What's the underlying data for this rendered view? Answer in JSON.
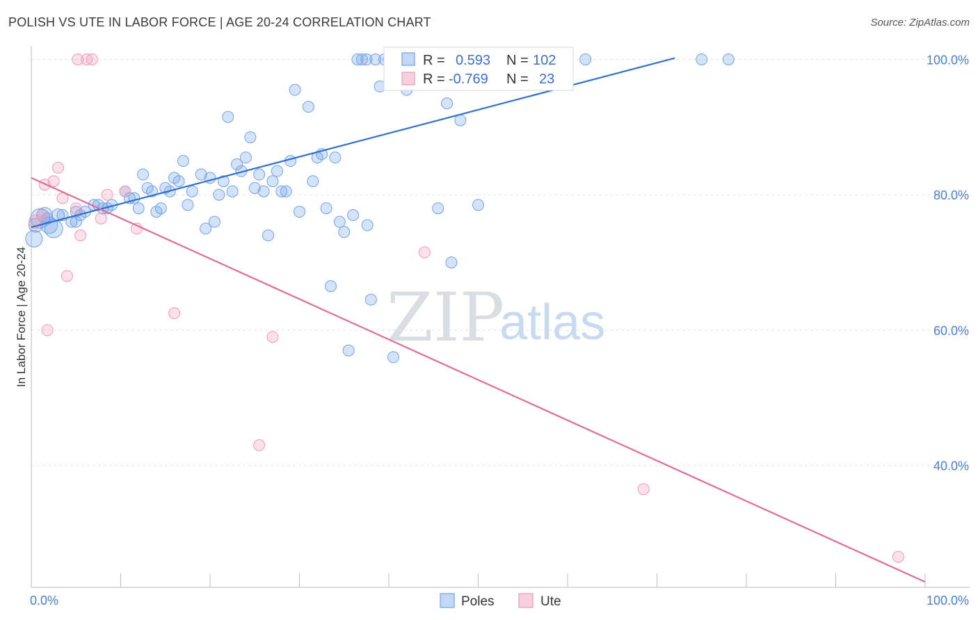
{
  "title": "POLISH VS UTE IN LABOR FORCE | AGE 20-24 CORRELATION CHART",
  "source": "Source: ZipAtlas.com",
  "watermark": {
    "zip": "ZIP",
    "atlas": "atlas"
  },
  "legend": {
    "rows": [
      {
        "r_label": "R = ",
        "r_value": "0.593",
        "n_label": "N = ",
        "n_value": "102",
        "color": "#6fa3e8"
      },
      {
        "r_label": "R = ",
        "r_value": "-0.769",
        "n_label": "N = ",
        "n_value": "23",
        "color": "#f19ab7"
      }
    ]
  },
  "chart_data": {
    "type": "scatter",
    "title": "POLISH VS UTE IN LABOR FORCE | AGE 20-24 CORRELATION CHART",
    "xlabel": "",
    "ylabel": "In Labor Force | Age 20-24",
    "xlim": [
      0,
      100
    ],
    "ylim": [
      22,
      102
    ],
    "x_tick_labels": [
      "0.0%",
      "100.0%"
    ],
    "y_ticks": [
      40,
      60,
      80,
      100
    ],
    "y_tick_labels": [
      "40.0%",
      "60.0%",
      "80.0%",
      "100.0%"
    ],
    "grid": true,
    "legend_placement": "bottom-center",
    "series": [
      {
        "name": "Poles",
        "color": "#6fa3e8",
        "trend": {
          "x": [
            0,
            72
          ],
          "y": [
            75.2,
            100.2
          ]
        },
        "points": [
          [
            0.3,
            73.5,
            12
          ],
          [
            0.5,
            75.5,
            10
          ],
          [
            1,
            76.5,
            14
          ],
          [
            1.5,
            77,
            11
          ],
          [
            2,
            75.5,
            12
          ],
          [
            2.5,
            75,
            13
          ],
          [
            3,
            77,
            9
          ],
          [
            3.5,
            77,
            8
          ],
          [
            4.5,
            76,
            8
          ],
          [
            5,
            77.5,
            8
          ],
          [
            5.5,
            77,
            8
          ],
          [
            6,
            77.5,
            8
          ],
          [
            7,
            78.5,
            8
          ],
          [
            7.5,
            78.5,
            8
          ],
          [
            8,
            78,
            8
          ],
          [
            8.5,
            78,
            8
          ],
          [
            9,
            78.5,
            8
          ],
          [
            10.5,
            80.5,
            8
          ],
          [
            11,
            79.5,
            8
          ],
          [
            11.5,
            79.5,
            8
          ],
          [
            12,
            78,
            8
          ],
          [
            12.5,
            83,
            8
          ],
          [
            13,
            81,
            8
          ],
          [
            13.5,
            80.5,
            8
          ],
          [
            14,
            77.5,
            8
          ],
          [
            14.5,
            78,
            8
          ],
          [
            15,
            81,
            8
          ],
          [
            15.5,
            80.5,
            8
          ],
          [
            16,
            82.5,
            8
          ],
          [
            16.5,
            82,
            8
          ],
          [
            17,
            85,
            8
          ],
          [
            17.5,
            78.5,
            8
          ],
          [
            18,
            80.5,
            8
          ],
          [
            19,
            83,
            8
          ],
          [
            19.5,
            75,
            8
          ],
          [
            20,
            82.5,
            8
          ],
          [
            20.5,
            76,
            8
          ],
          [
            21,
            80,
            8
          ],
          [
            21.5,
            82,
            8
          ],
          [
            22,
            91.5,
            8
          ],
          [
            22.5,
            80.5,
            8
          ],
          [
            23,
            84.5,
            8
          ],
          [
            23.5,
            83.5,
            8
          ],
          [
            24,
            85.5,
            8
          ],
          [
            24.5,
            88.5,
            8
          ],
          [
            25,
            81,
            8
          ],
          [
            25.5,
            83,
            8
          ],
          [
            26,
            80.5,
            8
          ],
          [
            26.5,
            74,
            8
          ],
          [
            27,
            82,
            8
          ],
          [
            27.5,
            83.5,
            8
          ],
          [
            28,
            80.5,
            8
          ],
          [
            28.5,
            80.5,
            8
          ],
          [
            29,
            85,
            8
          ],
          [
            29.5,
            95.5,
            8
          ],
          [
            30,
            77.5,
            8
          ],
          [
            31,
            93,
            8
          ],
          [
            31.5,
            82,
            8
          ],
          [
            32,
            85.5,
            8
          ],
          [
            32.5,
            86,
            8
          ],
          [
            33,
            78,
            8
          ],
          [
            33.5,
            66.5,
            8
          ],
          [
            34,
            85.5,
            8
          ],
          [
            34.5,
            76,
            8
          ],
          [
            35,
            74.5,
            8
          ],
          [
            35.5,
            57,
            8
          ],
          [
            36,
            77,
            8
          ],
          [
            36.5,
            100,
            8
          ],
          [
            37,
            100,
            8
          ],
          [
            37.5,
            100,
            8
          ],
          [
            37.6,
            75.5,
            8
          ],
          [
            38,
            64.5,
            8
          ],
          [
            38.5,
            100,
            8
          ],
          [
            39,
            96,
            8
          ],
          [
            39.5,
            100,
            8
          ],
          [
            40,
            100,
            8
          ],
          [
            40.5,
            56,
            8
          ],
          [
            41,
            100,
            8
          ],
          [
            41.5,
            100,
            8
          ],
          [
            42,
            95.5,
            8
          ],
          [
            43,
            100,
            8
          ],
          [
            44,
            100,
            8
          ],
          [
            45,
            100,
            8
          ],
          [
            45.5,
            78,
            8
          ],
          [
            46,
            100,
            8
          ],
          [
            46.5,
            93.5,
            8
          ],
          [
            47,
            70,
            8
          ],
          [
            47.5,
            100,
            8
          ],
          [
            48,
            91,
            8
          ],
          [
            49,
            100,
            8
          ],
          [
            50,
            78.5,
            8
          ],
          [
            51,
            100,
            8
          ],
          [
            52,
            100,
            8
          ],
          [
            53,
            100,
            8
          ],
          [
            55,
            100,
            8
          ],
          [
            57,
            100,
            8
          ],
          [
            60,
            100,
            8
          ],
          [
            62,
            100,
            8
          ],
          [
            75,
            100,
            8
          ],
          [
            78,
            100,
            8
          ],
          [
            5,
            76,
            8
          ],
          [
            1.8,
            76.5,
            8
          ]
        ]
      },
      {
        "name": "Ute",
        "color": "#f19ab7",
        "trend": {
          "x": [
            0,
            100
          ],
          "y": [
            82.5,
            22.8
          ]
        },
        "points": [
          [
            0.5,
            76,
            10
          ],
          [
            1.2,
            77,
            8
          ],
          [
            1.5,
            81.5,
            8
          ],
          [
            1.8,
            60,
            8
          ],
          [
            2.5,
            82,
            8
          ],
          [
            3,
            84,
            8
          ],
          [
            3.5,
            79.5,
            8
          ],
          [
            4,
            68,
            8
          ],
          [
            5,
            78,
            8
          ],
          [
            5.5,
            74,
            8
          ],
          [
            5.2,
            100,
            8
          ],
          [
            6.2,
            100,
            8
          ],
          [
            6.8,
            100,
            8
          ],
          [
            7.8,
            76.5,
            8
          ],
          [
            8.5,
            80,
            8
          ],
          [
            10.5,
            80.5,
            8
          ],
          [
            11.8,
            75,
            8
          ],
          [
            16,
            62.5,
            8
          ],
          [
            25.5,
            43,
            8
          ],
          [
            27,
            59,
            8
          ],
          [
            44,
            71.5,
            8
          ],
          [
            68.5,
            36.5,
            8
          ],
          [
            97,
            26.5,
            8
          ]
        ]
      }
    ]
  }
}
